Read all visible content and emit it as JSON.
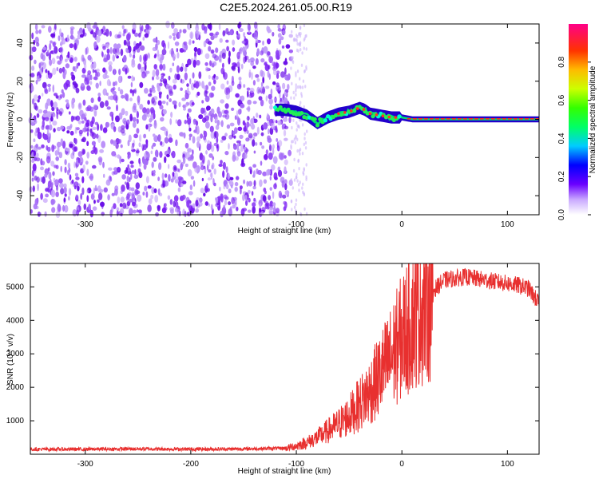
{
  "title": "C2E5.2024.261.05.00.R19",
  "chart_data": [
    {
      "type": "heatmap",
      "xlabel": "Height of straight line (km)",
      "ylabel": "Frequency (Hz)",
      "xlim": [
        -352,
        130
      ],
      "ylim": [
        -50,
        50
      ],
      "xticks": [
        -300,
        -200,
        -100,
        0,
        100
      ],
      "yticks": [
        -40,
        -20,
        0,
        20,
        40
      ],
      "noise_region_x": [
        -352,
        -105
      ],
      "signal_trace": {
        "x": [
          -120,
          -110,
          -100,
          -90,
          -80,
          -70,
          -60,
          -50,
          -40,
          -35,
          -30,
          -20,
          -10,
          0,
          10,
          20,
          40,
          60,
          80,
          100,
          130
        ],
        "y": [
          5,
          5,
          4,
          2,
          -2,
          1,
          3,
          4,
          6,
          5,
          3,
          2,
          1,
          1,
          0,
          0,
          0,
          0,
          0,
          0,
          0
        ]
      },
      "colorbar": {
        "label": "Normalized spectral amplitude",
        "range": [
          0,
          1
        ],
        "ticks": [
          "0.0",
          "0.2",
          "0.4",
          "0.6",
          "0.8"
        ]
      }
    },
    {
      "type": "line",
      "xlabel": "Height of straight line (km)",
      "ylabel": "SNR (10 * v/v)",
      "xlim": [
        -352,
        130
      ],
      "ylim": [
        0,
        5700
      ],
      "xticks": [
        -300,
        -200,
        -100,
        0,
        100
      ],
      "yticks": [
        1000,
        2000,
        3000,
        4000,
        5000
      ],
      "color": "#e8302f",
      "series": [
        {
          "x": [
            -352,
            -300,
            -250,
            -200,
            -150,
            -110,
            -100,
            -90,
            -80,
            -70,
            -60,
            -50,
            -40,
            -30,
            -20,
            -10,
            0,
            10,
            20,
            30,
            40,
            50,
            60,
            70,
            80,
            90,
            100,
            110,
            120,
            130
          ],
          "y": [
            150,
            150,
            160,
            150,
            160,
            180,
            250,
            350,
            500,
            700,
            900,
            1150,
            1500,
            1900,
            2400,
            2900,
            3500,
            4100,
            4500,
            4900,
            5200,
            5250,
            5300,
            5250,
            5200,
            5150,
            5100,
            5050,
            4950,
            4500
          ]
        }
      ]
    }
  ]
}
